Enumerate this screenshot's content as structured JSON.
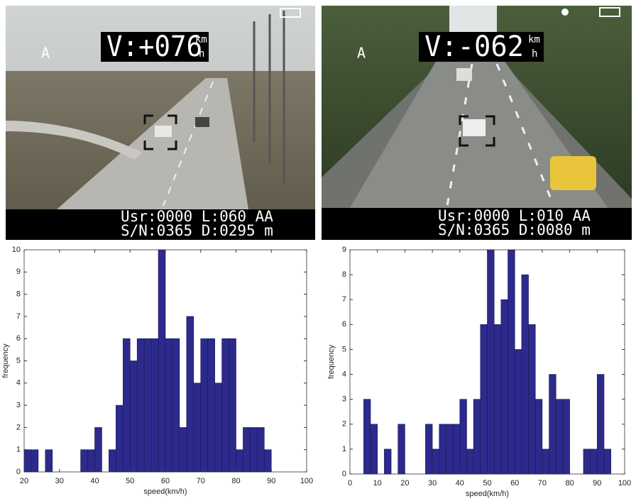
{
  "panels": [
    {
      "label": "A",
      "speed": "V:+076",
      "unit_top": "km",
      "unit_bottom": "h",
      "status_line1": "Usr:0000 L:060 AA",
      "status_line2": "S/N:0365 D:0295 m"
    },
    {
      "label": "A",
      "speed": "V:-062",
      "unit_top": "km",
      "unit_bottom": "h",
      "status_line1": "Usr:0000 L:010 AA",
      "status_line2": "S/N:0365 D:0080 m"
    }
  ],
  "chart_data": [
    {
      "type": "histogram",
      "xlabel": "speed(km/h)",
      "ylabel": "frequency",
      "color": "#2c2a8c",
      "bins": [
        20,
        22,
        24,
        26,
        28,
        30,
        32,
        34,
        36,
        38,
        40,
        42,
        44,
        46,
        48,
        50,
        52,
        54,
        56,
        58,
        60,
        62,
        64,
        66,
        68,
        70,
        72,
        74,
        76,
        78,
        80,
        82,
        84,
        86,
        88,
        90
      ],
      "values": [
        1,
        1,
        0,
        1,
        0,
        0,
        0,
        0,
        1,
        1,
        2,
        0,
        1,
        3,
        6,
        5,
        6,
        6,
        6,
        10,
        6,
        6,
        2,
        7,
        4,
        6,
        6,
        4,
        6,
        6,
        1,
        2,
        2,
        2,
        1
      ],
      "xlim": [
        20,
        100
      ],
      "xticks": [
        20,
        30,
        40,
        50,
        60,
        70,
        80,
        90,
        100
      ],
      "ylim": [
        0,
        10
      ],
      "yticks": [
        0,
        1,
        2,
        3,
        4,
        5,
        6,
        7,
        8,
        9,
        10
      ]
    },
    {
      "type": "histogram",
      "xlabel": "speed(km/h)",
      "ylabel": "frequency",
      "color": "#2c2a8c",
      "bins": [
        5,
        7.5,
        10,
        12.5,
        15,
        17.5,
        20,
        22.5,
        25,
        27.5,
        30,
        32.5,
        35,
        37.5,
        40,
        42.5,
        45,
        47.5,
        50,
        52.5,
        55,
        57.5,
        60,
        62.5,
        65,
        67.5,
        70,
        72.5,
        75,
        77.5,
        80,
        82.5,
        85,
        87.5,
        90,
        92.5,
        95
      ],
      "values": [
        3,
        2,
        0,
        1,
        0,
        2,
        0,
        0,
        0,
        2,
        1,
        2,
        2,
        2,
        3,
        1,
        3,
        6,
        9,
        6,
        7,
        9,
        5,
        8,
        6,
        3,
        1,
        4,
        3,
        3,
        0,
        0,
        1,
        1,
        4,
        1
      ],
      "xlim": [
        0,
        100
      ],
      "xticks": [
        0,
        10,
        20,
        30,
        40,
        50,
        60,
        70,
        80,
        90,
        100
      ],
      "ylim": [
        0,
        9
      ],
      "yticks": [
        0,
        1,
        2,
        3,
        4,
        5,
        6,
        7,
        8,
        9
      ]
    }
  ]
}
